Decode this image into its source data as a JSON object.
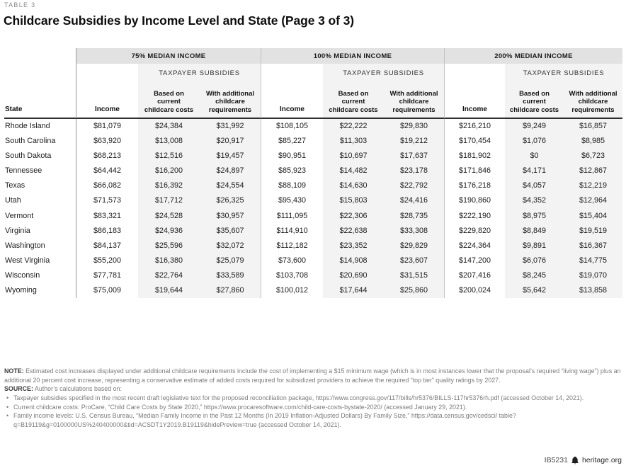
{
  "page": {
    "kicker": "TABLE 3",
    "title": "Childcare Subsidies by Income Level and State (Page 3 of 3)"
  },
  "colors": {
    "group_band_bg": "#e2e2e2",
    "subsidy_shade_bg": "#f3f3f3",
    "header_rule": "#2e2e2e"
  },
  "table": {
    "groups": [
      {
        "label": "75% MEDIAN INCOME"
      },
      {
        "label": "100% MEDIAN INCOME"
      },
      {
        "label": "200% MEDIAN INCOME"
      }
    ],
    "subgroup_label": "TAXPAYER SUBSIDIES",
    "columns": {
      "state": "State",
      "income": "Income",
      "based_lines": [
        "Based on",
        "current",
        "childcare costs"
      ],
      "with_lines": [
        "With additional",
        "childcare",
        "requirements"
      ]
    },
    "rows": [
      {
        "state": "Rhode Island",
        "g75": [
          "$81,079",
          "$24,384",
          "$31,992"
        ],
        "g100": [
          "$108,105",
          "$22,222",
          "$29,830"
        ],
        "g200": [
          "$216,210",
          "$9,249",
          "$16,857"
        ]
      },
      {
        "state": "South Carolina",
        "g75": [
          "$63,920",
          "$13,008",
          "$20,917"
        ],
        "g100": [
          "$85,227",
          "$11,303",
          "$19,212"
        ],
        "g200": [
          "$170,454",
          "$1,076",
          "$8,985"
        ]
      },
      {
        "state": "South Dakota",
        "g75": [
          "$68,213",
          "$12,516",
          "$19,457"
        ],
        "g100": [
          "$90,951",
          "$10,697",
          "$17,637"
        ],
        "g200": [
          "$181,902",
          "$0",
          "$6,723"
        ]
      },
      {
        "state": "Tennessee",
        "g75": [
          "$64,442",
          "$16,200",
          "$24,897"
        ],
        "g100": [
          "$85,923",
          "$14,482",
          "$23,178"
        ],
        "g200": [
          "$171,846",
          "$4,171",
          "$12,867"
        ]
      },
      {
        "state": "Texas",
        "g75": [
          "$66,082",
          "$16,392",
          "$24,554"
        ],
        "g100": [
          "$88,109",
          "$14,630",
          "$22,792"
        ],
        "g200": [
          "$176,218",
          "$4,057",
          "$12,219"
        ]
      },
      {
        "state": "Utah",
        "g75": [
          "$71,573",
          "$17,712",
          "$26,325"
        ],
        "g100": [
          "$95,430",
          "$15,803",
          "$24,416"
        ],
        "g200": [
          "$190,860",
          "$4,352",
          "$12,964"
        ]
      },
      {
        "state": "Vermont",
        "g75": [
          "$83,321",
          "$24,528",
          "$30,957"
        ],
        "g100": [
          "$111,095",
          "$22,306",
          "$28,735"
        ],
        "g200": [
          "$222,190",
          "$8,975",
          "$15,404"
        ]
      },
      {
        "state": "Virginia",
        "g75": [
          "$86,183",
          "$24,936",
          "$35,607"
        ],
        "g100": [
          "$114,910",
          "$22,638",
          "$33,308"
        ],
        "g200": [
          "$229,820",
          "$8,849",
          "$19,519"
        ]
      },
      {
        "state": "Washington",
        "g75": [
          "$84,137",
          "$25,596",
          "$32,072"
        ],
        "g100": [
          "$112,182",
          "$23,352",
          "$29,829"
        ],
        "g200": [
          "$224,364",
          "$9,891",
          "$16,367"
        ]
      },
      {
        "state": "West Virginia",
        "g75": [
          "$55,200",
          "$16,380",
          "$25,079"
        ],
        "g100": [
          "$73,600",
          "$14,908",
          "$23,607"
        ],
        "g200": [
          "$147,200",
          "$6,076",
          "$14,775"
        ]
      },
      {
        "state": "Wisconsin",
        "g75": [
          "$77,781",
          "$22,764",
          "$33,589"
        ],
        "g100": [
          "$103,708",
          "$20,690",
          "$31,515"
        ],
        "g200": [
          "$207,416",
          "$8,245",
          "$19,070"
        ]
      },
      {
        "state": "Wyoming",
        "g75": [
          "$75,009",
          "$19,644",
          "$27,860"
        ],
        "g100": [
          "$100,012",
          "$17,644",
          "$25,860"
        ],
        "g200": [
          "$200,024",
          "$5,642",
          "$13,858"
        ]
      }
    ]
  },
  "notes": {
    "note_label": "NOTE:",
    "note_text": " Estimated cost increases displayed under additional childcare requirements include the cost of implementing a $15 minimum wage (which is in most instances lower that the proposal’s required “living wage”) plus an additional 20 percent cost increase, representing a conservative estimate of added costs required for subsidized providers to achieve the required “top tier” quality ratings by 2027.",
    "source_label": "SOURCE:",
    "source_text": " Author’s calculations based on:",
    "bullets": [
      "Taxpayer subsidies specified in the most recent draft legislative text for the proposed reconciliation package, https://www.congress.gov/117/bills/hr5376/BILLS-117hr5376rh.pdf (accessed October 14, 2021).",
      "Current childcare costs: ProCare, “Child Care Costs by State 2020,” https://www.procaresoftware.com/child-care-costs-bystate-2020/ (accessed January 29, 2021).",
      "Family income levels: U.S. Census Bureau, “Median Family Income in the Past 12 Months (In 2019 Inflation-Adjusted Dollars) By Family Size,” https://data.census.gov/cedsci/ table?q=B19119&g=0100000US%240400000&tid=ACSDT1Y2019.B19119&hidePreview=true (accessed October 14, 2021)."
    ]
  },
  "footer": {
    "doc_id": "IB5231",
    "site": "heritage.org"
  }
}
